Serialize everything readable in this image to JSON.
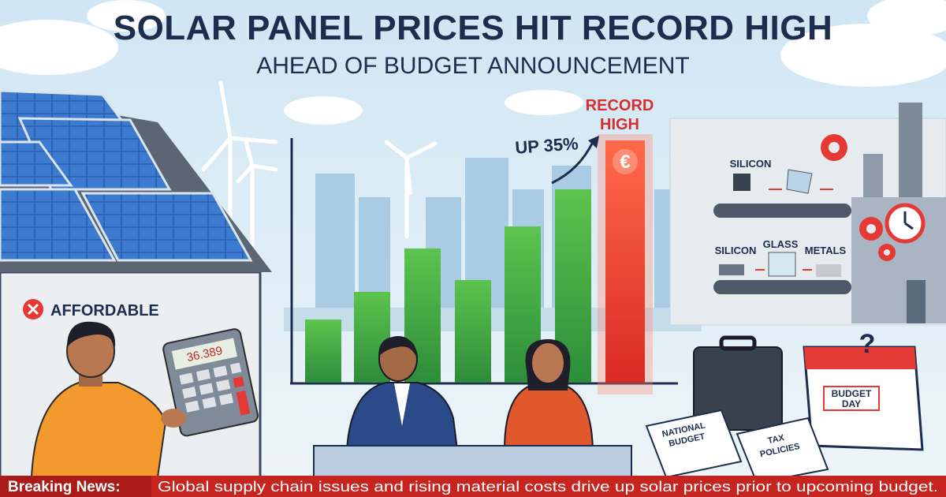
{
  "header": {
    "title": "SOLAR PANEL PRICES HIT RECORD HIGH",
    "subtitle": "AHEAD OF BUDGET ANNOUNCEMENT"
  },
  "chart_callouts": {
    "increase": "UP 35%",
    "record_line1": "RECORD",
    "record_line2": "HIGH",
    "currency": "€"
  },
  "house": {
    "status": "AFFORDABLE",
    "calculator_display": "36.389"
  },
  "factory": {
    "labels": [
      "SILICON",
      "SILICON",
      "GLASS",
      "METALS"
    ]
  },
  "budget": {
    "calendar_question": "?",
    "calendar_line1": "BUDGET",
    "calendar_line2": "DAY",
    "paper1_line1": "NATIONAL",
    "paper1_line2": "BUDGET",
    "paper2_line1": "TAX",
    "paper2_line2": "POLICIES"
  },
  "ticker": {
    "label": "Breaking News:",
    "text": "Global supply chain issues and rising material costs drive up solar prices prior to upcoming budget."
  }
}
